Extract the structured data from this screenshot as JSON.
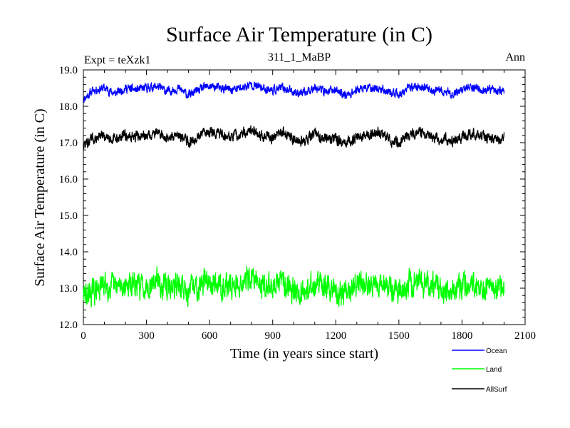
{
  "chart_data": {
    "type": "line",
    "title": "Surface Air Temperature (in C)",
    "subtitle_left": "Expt = teXzk1",
    "subtitle_center": "311_1_MaBP",
    "subtitle_right": "Ann",
    "xlabel": "Time (in years since start)",
    "ylabel": "Surface Air Temperature (in C)",
    "xlim": [
      0,
      2100
    ],
    "ylim": [
      12.0,
      19.0
    ],
    "xticks": [
      0,
      300,
      600,
      900,
      1200,
      1500,
      1800,
      2100
    ],
    "xtick_labels": [
      "0",
      "300",
      "600",
      "900",
      "1200",
      "1500",
      "1800",
      "2100"
    ],
    "yticks": [
      12.0,
      13.0,
      14.0,
      15.0,
      16.0,
      17.0,
      18.0,
      19.0
    ],
    "ytick_labels": [
      "12.0",
      "13.0",
      "14.0",
      "15.0",
      "16.0",
      "17.0",
      "18.0",
      "19.0"
    ],
    "legend_position": "bottom-right",
    "series": [
      {
        "name": "Ocean",
        "color": "#0000ff",
        "x": [
          0,
          50,
          100,
          150,
          200,
          250,
          300,
          350,
          400,
          450,
          500,
          550,
          600,
          650,
          700,
          750,
          800,
          850,
          900,
          950,
          1000,
          1050,
          1100,
          1150,
          1200,
          1250,
          1300,
          1350,
          1400,
          1450,
          1500,
          1550,
          1600,
          1650,
          1700,
          1750,
          1800,
          1850,
          1900,
          1950,
          2000
        ],
        "values": [
          18.2,
          18.45,
          18.5,
          18.35,
          18.5,
          18.45,
          18.5,
          18.55,
          18.4,
          18.5,
          18.3,
          18.45,
          18.55,
          18.5,
          18.45,
          18.5,
          18.6,
          18.5,
          18.45,
          18.5,
          18.4,
          18.35,
          18.55,
          18.4,
          18.45,
          18.3,
          18.45,
          18.5,
          18.5,
          18.4,
          18.3,
          18.5,
          18.55,
          18.45,
          18.4,
          18.35,
          18.45,
          18.55,
          18.4,
          18.45,
          18.4
        ],
        "amplitude": 0.12
      },
      {
        "name": "Land",
        "color": "#00ff00",
        "x": [
          0,
          50,
          100,
          150,
          200,
          250,
          300,
          350,
          400,
          450,
          500,
          550,
          600,
          650,
          700,
          750,
          800,
          850,
          900,
          950,
          1000,
          1050,
          1100,
          1150,
          1200,
          1250,
          1300,
          1350,
          1400,
          1450,
          1500,
          1550,
          1600,
          1650,
          1700,
          1750,
          1800,
          1850,
          1900,
          1950,
          2000
        ],
        "values": [
          12.8,
          12.9,
          13.1,
          13.0,
          13.1,
          13.05,
          13.1,
          13.2,
          13.0,
          13.1,
          12.9,
          13.1,
          13.25,
          13.1,
          13.05,
          13.15,
          13.25,
          13.1,
          13.05,
          13.2,
          13.0,
          12.9,
          13.15,
          13.0,
          12.95,
          12.8,
          13.05,
          13.1,
          13.15,
          13.0,
          12.85,
          13.15,
          13.2,
          13.05,
          13.0,
          12.9,
          13.05,
          13.15,
          13.0,
          12.95,
          13.0
        ],
        "amplitude": 0.35
      },
      {
        "name": "AllSurf",
        "color": "#000000",
        "x": [
          0,
          50,
          100,
          150,
          200,
          250,
          300,
          350,
          400,
          450,
          500,
          550,
          600,
          650,
          700,
          750,
          800,
          850,
          900,
          950,
          1000,
          1050,
          1100,
          1150,
          1200,
          1250,
          1300,
          1350,
          1400,
          1450,
          1500,
          1550,
          1600,
          1650,
          1700,
          1750,
          1800,
          1850,
          1900,
          1950,
          2000
        ],
        "values": [
          16.95,
          17.1,
          17.2,
          17.1,
          17.2,
          17.15,
          17.2,
          17.3,
          17.1,
          17.25,
          17.0,
          17.2,
          17.3,
          17.25,
          17.15,
          17.25,
          17.35,
          17.2,
          17.15,
          17.3,
          17.1,
          17.05,
          17.25,
          17.1,
          17.1,
          16.95,
          17.15,
          17.2,
          17.25,
          17.1,
          17.0,
          17.25,
          17.3,
          17.15,
          17.1,
          17.05,
          17.15,
          17.3,
          17.15,
          17.1,
          17.15
        ],
        "amplitude": 0.15
      }
    ]
  }
}
